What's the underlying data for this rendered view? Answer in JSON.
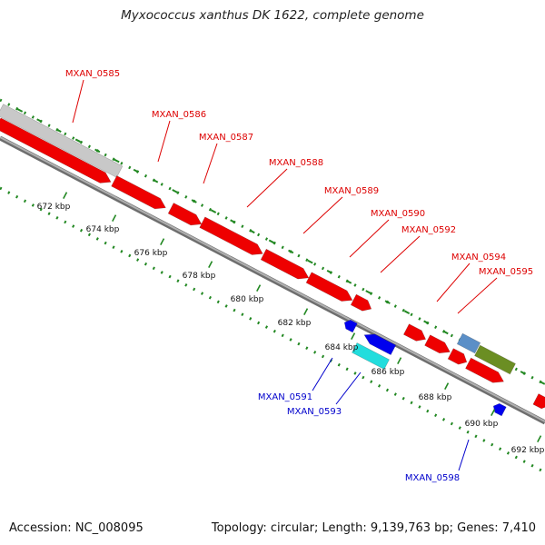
{
  "title": "Myxococcus xanthus DK 1622, complete genome",
  "footer": {
    "accession": "Accession: NC_008095",
    "summary": "Topology: circular; Length: 9,139,763 bp; Genes: 7,410"
  },
  "colors": {
    "forward_cds": "#ee0000",
    "reverse_cds": "#0000ee",
    "forward_label": "#dd0000",
    "reverse_label": "#0000cc",
    "backbone": "#8a8a8a",
    "tick": "#228822",
    "grey_feature": "#c8c8c8",
    "steelblue_feature": "#5b8fc7",
    "olive_feature": "#6b8e23",
    "cyan_feature": "#22dddd"
  },
  "ticks": [
    {
      "label": "672 kbp",
      "kbp": 672
    },
    {
      "label": "674 kbp",
      "kbp": 674
    },
    {
      "label": "676 kbp",
      "kbp": 676
    },
    {
      "label": "678 kbp",
      "kbp": 678
    },
    {
      "label": "680 kbp",
      "kbp": 680
    },
    {
      "label": "682 kbp",
      "kbp": 682
    },
    {
      "label": "684 kbp",
      "kbp": 684
    },
    {
      "label": "686 kbp",
      "kbp": 686
    },
    {
      "label": "688 kbp",
      "kbp": 688
    },
    {
      "label": "690 kbp",
      "kbp": 690
    },
    {
      "label": "692 kbp",
      "kbp": 692
    }
  ],
  "forward_labels": [
    "MXAN_0585",
    "MXAN_0586",
    "MXAN_0587",
    "MXAN_0588",
    "MXAN_0589",
    "MXAN_0590",
    "MXAN_0592",
    "MXAN_0594",
    "MXAN_0595"
  ],
  "reverse_labels": [
    "MXAN_0591",
    "MXAN_0593",
    "MXAN_0598"
  ]
}
